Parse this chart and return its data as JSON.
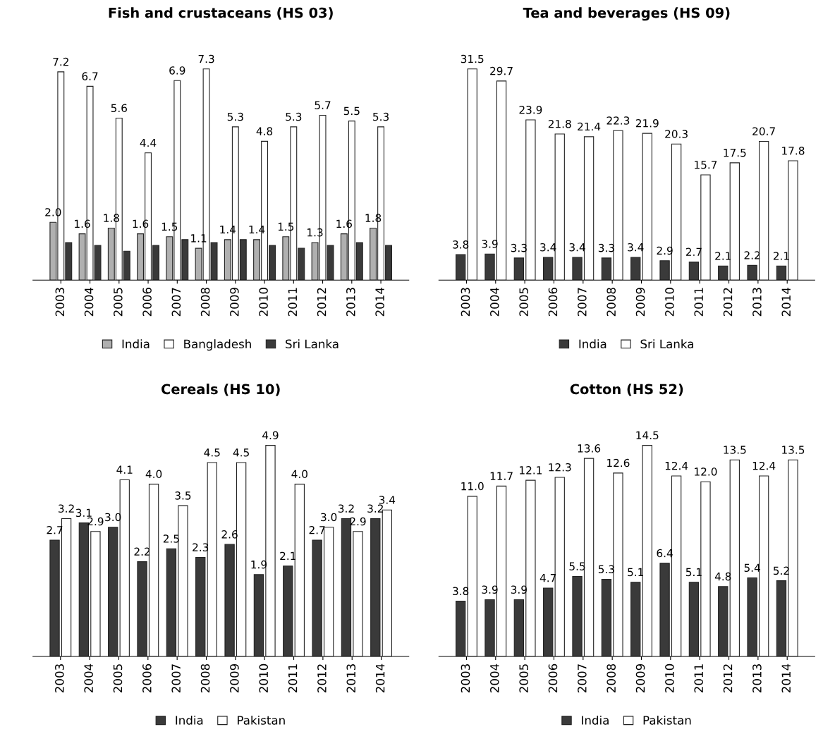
{
  "chart_data": [
    {
      "type": "bar",
      "title": "Fish and crustaceans (HS 03)",
      "categories": [
        "2003",
        "2004",
        "2005",
        "2006",
        "2007",
        "2008",
        "2009",
        "2010",
        "2011",
        "2012",
        "2013",
        "2014"
      ],
      "legend": "bottom",
      "grid": false,
      "series": [
        {
          "name": "India",
          "color": "#b0b0b0",
          "values": [
            2.0,
            1.6,
            1.8,
            1.6,
            1.5,
            1.1,
            1.4,
            1.4,
            1.5,
            1.3,
            1.6,
            1.8
          ],
          "value_labels": [
            "2.0",
            "1.6",
            "1.8",
            "1.6",
            "1.5",
            "1.1",
            "1.4",
            "1.4",
            "1.5",
            "1.3",
            "1.6",
            "1.8"
          ]
        },
        {
          "name": "Bangladesh",
          "color": "#ffffff",
          "values": [
            7.2,
            6.7,
            5.6,
            4.4,
            6.9,
            7.3,
            5.3,
            4.8,
            5.3,
            5.7,
            5.5,
            5.3
          ],
          "value_labels": [
            "7.2",
            "6.7",
            "5.6",
            "4.4",
            "6.9",
            "7.3",
            "5.3",
            "4.8",
            "5.3",
            "5.7",
            "5.5",
            "5.3"
          ]
        },
        {
          "name": "Sri Lanka",
          "color": "#3a3a3a",
          "values": [
            1.3,
            1.2,
            1.0,
            1.2,
            1.4,
            1.3,
            1.4,
            1.2,
            1.1,
            1.2,
            1.3,
            1.2
          ]
        }
      ]
    },
    {
      "type": "bar",
      "title": "Tea and beverages (HS 09)",
      "categories": [
        "2003",
        "2004",
        "2005",
        "2006",
        "2007",
        "2008",
        "2009",
        "2010",
        "2011",
        "2012",
        "2013",
        "2014"
      ],
      "legend": "bottom",
      "grid": false,
      "series": [
        {
          "name": "India",
          "color": "#3a3a3a",
          "values": [
            3.8,
            3.9,
            3.3,
            3.4,
            3.4,
            3.3,
            3.4,
            2.9,
            2.7,
            2.1,
            2.2,
            2.1
          ],
          "value_labels": [
            "3.8",
            "3.9",
            "3.3",
            "3.4",
            "3.4",
            "3.3",
            "3.4",
            "2.9",
            "2.7",
            "2.1",
            "2.2",
            "2.1"
          ]
        },
        {
          "name": "Sri Lanka",
          "color": "#ffffff",
          "values": [
            31.5,
            29.7,
            23.9,
            21.8,
            21.4,
            22.3,
            21.9,
            20.3,
            15.7,
            17.5,
            20.7,
            17.8
          ],
          "value_labels": [
            "31.5",
            "29.7",
            "23.9",
            "21.8",
            "21.4",
            "22.3",
            "21.9",
            "20.3",
            "15.7",
            "17.5",
            "20.7",
            "17.8"
          ]
        }
      ]
    },
    {
      "type": "bar",
      "title": "Cereals (HS 10)",
      "categories": [
        "2003",
        "2004",
        "2005",
        "2006",
        "2007",
        "2008",
        "2009",
        "2010",
        "2011",
        "2012",
        "2013",
        "2014"
      ],
      "legend": "bottom",
      "grid": false,
      "series": [
        {
          "name": "India",
          "color": "#3a3a3a",
          "values": [
            2.7,
            3.1,
            3.0,
            2.2,
            2.5,
            2.3,
            2.6,
            1.9,
            2.1,
            2.7,
            3.2,
            3.2
          ],
          "value_labels": [
            "2.7",
            "3.1",
            "3.0",
            "2.2",
            "2.5",
            "2.3",
            "2.6",
            "1.9",
            "2.1",
            "2.7",
            "3.2",
            "3.2"
          ]
        },
        {
          "name": "Pakistan",
          "color": "#ffffff",
          "values": [
            3.2,
            2.9,
            4.1,
            4.0,
            3.5,
            4.5,
            4.5,
            4.9,
            4.0,
            3.0,
            2.9,
            3.4
          ],
          "value_labels": [
            "3.2",
            "2.9",
            "4.1",
            "4.0",
            "3.5",
            "4.5",
            "4.5",
            "4.9",
            "4.0",
            "3.0",
            "2.9",
            "3.4"
          ]
        }
      ]
    },
    {
      "type": "bar",
      "title": "Cotton (HS 52)",
      "categories": [
        "2003",
        "2004",
        "2005",
        "2006",
        "2007",
        "2008",
        "2009",
        "2010",
        "2011",
        "2012",
        "2013",
        "2014"
      ],
      "legend": "bottom",
      "grid": false,
      "series": [
        {
          "name": "India",
          "color": "#3a3a3a",
          "values": [
            3.8,
            3.9,
            3.9,
            4.7,
            5.5,
            5.3,
            5.1,
            6.4,
            5.1,
            4.8,
            5.4,
            5.2
          ],
          "value_labels": [
            "3.8",
            "3.9",
            "3.9",
            "4.7",
            "5.5",
            "5.3",
            "5.1",
            "6.4",
            "5.1",
            "4.8",
            "5.4",
            "5.2"
          ]
        },
        {
          "name": "Pakistan",
          "color": "#ffffff",
          "values": [
            11.0,
            11.7,
            12.1,
            12.3,
            13.6,
            12.6,
            14.5,
            12.4,
            12.0,
            13.5,
            12.4,
            13.5
          ],
          "value_labels": [
            "11.0",
            "11.7",
            "12.1",
            "12.3",
            "13.6",
            "12.6",
            "14.5",
            "12.4",
            "12.0",
            "13.5",
            "12.4",
            "13.5"
          ]
        }
      ]
    }
  ]
}
